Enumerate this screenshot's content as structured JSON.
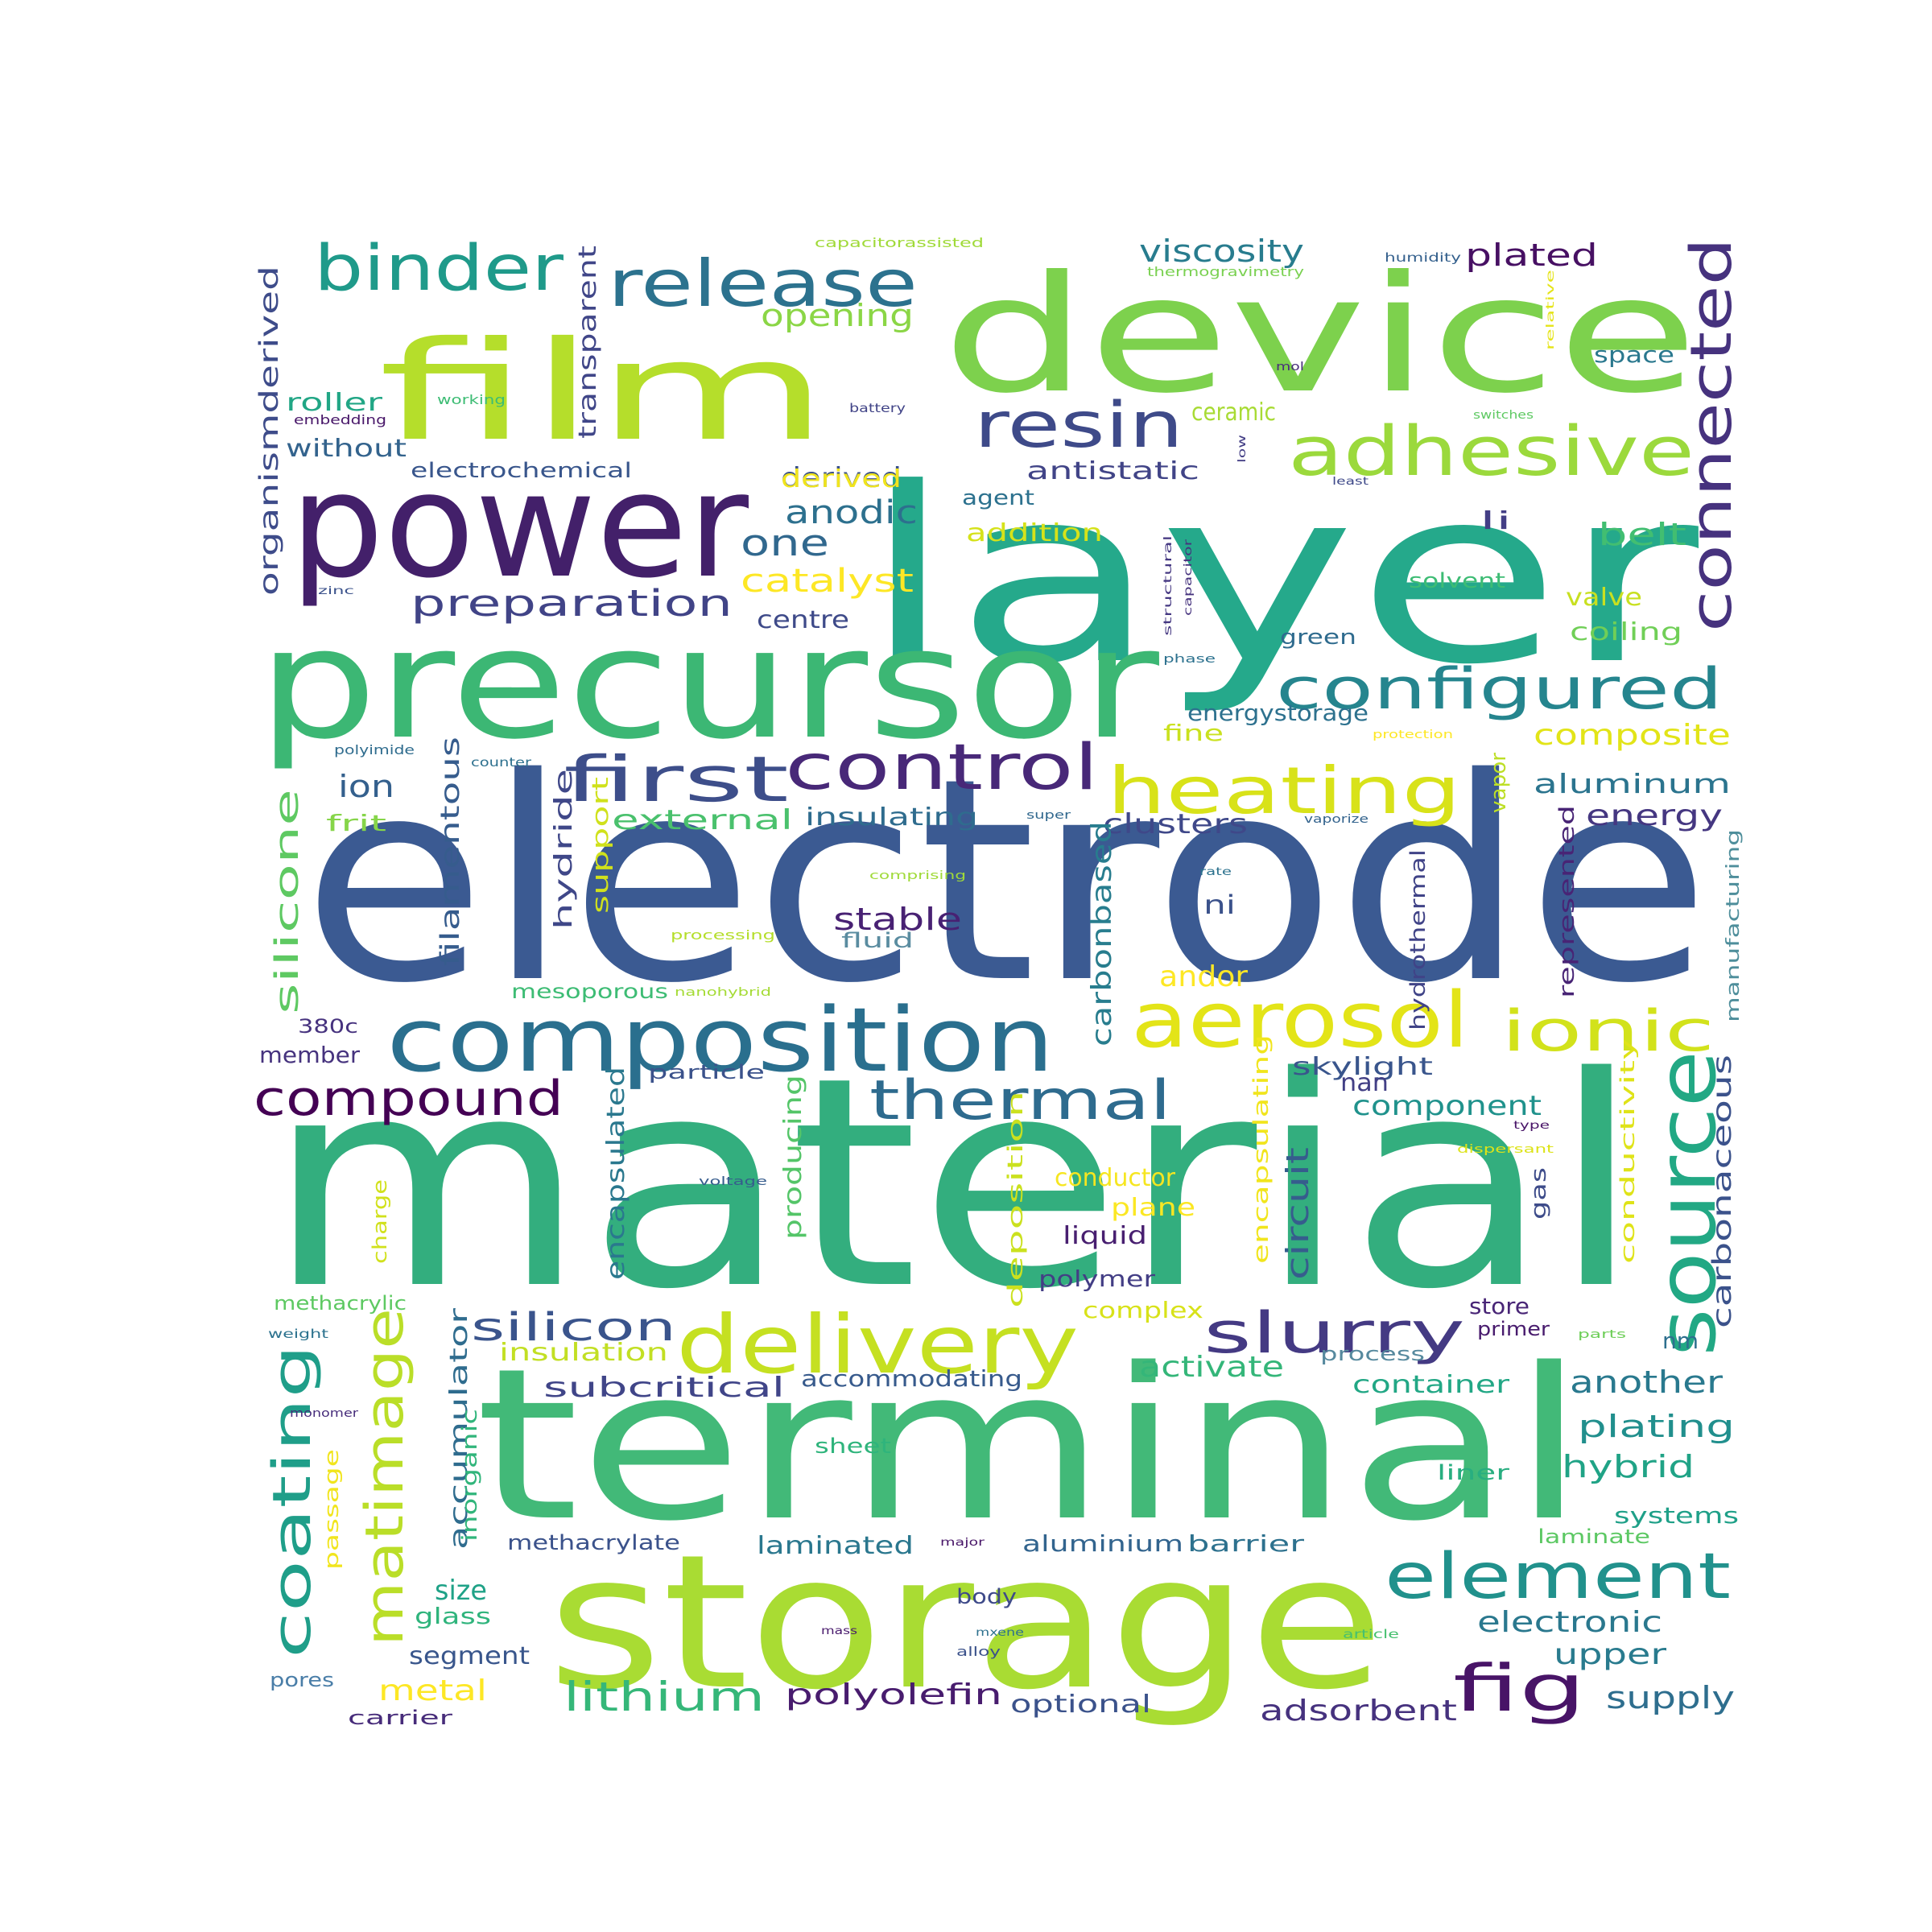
{
  "colors": {
    "background": "#ffffff"
  },
  "words": [
    {
      "text": "electrode",
      "color": "#3b5a92"
    },
    {
      "text": "material",
      "color": "#33ae7e"
    },
    {
      "text": "layer",
      "color": "#25a98b"
    },
    {
      "text": "device",
      "color": "#7dd14d"
    },
    {
      "text": "terminal",
      "color": "#42b978"
    },
    {
      "text": "storage",
      "color": "#a9dc33"
    },
    {
      "text": "film",
      "color": "#b5de2b"
    },
    {
      "text": "precursor",
      "color": "#3cb774"
    },
    {
      "text": "power",
      "color": "#43206a"
    },
    {
      "text": "composition",
      "color": "#2a6f8e"
    },
    {
      "text": "delivery",
      "color": "#c5e021"
    },
    {
      "text": "aerosol",
      "color": "#e3e418"
    },
    {
      "text": "source",
      "color": "#22a884"
    },
    {
      "text": "release",
      "color": "#2c728e"
    },
    {
      "text": "adhesive",
      "color": "#9bd93c"
    },
    {
      "text": "binder",
      "color": "#1f9a8a"
    },
    {
      "text": "resin",
      "color": "#3e4a89"
    },
    {
      "text": "connected",
      "color": "#46327e"
    },
    {
      "text": "configured",
      "color": "#25858e"
    },
    {
      "text": "heating",
      "color": "#d8e219"
    },
    {
      "text": "control",
      "color": "#482878"
    },
    {
      "text": "first",
      "color": "#3d4e8a"
    },
    {
      "text": "element",
      "color": "#21918c"
    },
    {
      "text": "compound",
      "color": "#440154"
    },
    {
      "text": "thermal",
      "color": "#2e6b8e"
    },
    {
      "text": "ionic",
      "color": "#d2e21b"
    },
    {
      "text": "slurry",
      "color": "#443a83"
    },
    {
      "text": "coating",
      "color": "#1f9e89"
    },
    {
      "text": "matimage",
      "color": "#bade28"
    },
    {
      "text": "fig",
      "color": "#481467"
    },
    {
      "text": "silicon",
      "color": "#3a548c"
    },
    {
      "text": "lithium",
      "color": "#35b779"
    },
    {
      "text": "preparation",
      "color": "#414487"
    },
    {
      "text": "silicone",
      "color": "#5ec962"
    },
    {
      "text": "one",
      "color": "#31688e"
    },
    {
      "text": "anodic",
      "color": "#2d708e"
    },
    {
      "text": "catalyst",
      "color": "#fde725"
    },
    {
      "text": "viscosity",
      "color": "#287c8e"
    },
    {
      "text": "opening",
      "color": "#8bd646"
    },
    {
      "text": "plated",
      "color": "#471063"
    },
    {
      "text": "transparent",
      "color": "#404688"
    },
    {
      "text": "derived",
      "color": "#3b528b"
    },
    {
      "text": "organismderived",
      "color": "#3e4c8a"
    },
    {
      "text": "ion",
      "color": "#34608d"
    },
    {
      "text": "filamentous",
      "color": "#365c8d"
    },
    {
      "text": "external",
      "color": "#4ac16d"
    },
    {
      "text": "insulating",
      "color": "#2f6c8e"
    },
    {
      "text": "clusters",
      "color": "#3f4889"
    },
    {
      "text": "aluminum",
      "color": "#2b748e"
    },
    {
      "text": "energy",
      "color": "#453781"
    },
    {
      "text": "composite",
      "color": "#e2e418"
    },
    {
      "text": "stable",
      "color": "#482173"
    },
    {
      "text": "andor",
      "color": "#fde725"
    },
    {
      "text": "ni",
      "color": "#3b528b"
    },
    {
      "text": "carbonbased",
      "color": "#287d8e"
    },
    {
      "text": "hydride",
      "color": "#3f4788"
    },
    {
      "text": "support",
      "color": "#d0e11c"
    },
    {
      "text": "hydrothermal",
      "color": "#404387"
    },
    {
      "text": "represented",
      "color": "#482475"
    },
    {
      "text": "manufacturing",
      "color": "#4e8e9b"
    },
    {
      "text": "vapor",
      "color": "#bddf26"
    },
    {
      "text": "roller",
      "color": "#21a685"
    },
    {
      "text": "without",
      "color": "#33638d"
    },
    {
      "text": "electrochemical",
      "color": "#39568c"
    },
    {
      "text": "ceramic",
      "color": "#a8db34"
    },
    {
      "text": "derived",
      "color": "#f1e51d"
    },
    {
      "text": "antistatic",
      "color": "#414487"
    },
    {
      "text": "agent",
      "color": "#2c718e"
    },
    {
      "text": "addition",
      "color": "#d5e21a"
    },
    {
      "text": "centre",
      "color": "#3e4a89"
    },
    {
      "text": "belt",
      "color": "#42be71"
    },
    {
      "text": "li",
      "color": "#433e85"
    },
    {
      "text": "solvent",
      "color": "#3dbc74"
    },
    {
      "text": "valve",
      "color": "#c8e020"
    },
    {
      "text": "coiling",
      "color": "#70cf57"
    },
    {
      "text": "green",
      "color": "#2f6b8e"
    },
    {
      "text": "energystorage",
      "color": "#2d718e"
    },
    {
      "text": "fine",
      "color": "#cae11f"
    },
    {
      "text": "space",
      "color": "#2a788e"
    },
    {
      "text": "frit",
      "color": "#86d549"
    },
    {
      "text": "fluid",
      "color": "#5a8ca0"
    },
    {
      "text": "mesoporous",
      "color": "#3dbc74"
    },
    {
      "text": "380c",
      "color": "#46327e"
    },
    {
      "text": "member",
      "color": "#46337e"
    },
    {
      "text": "particle",
      "color": "#3b528b"
    },
    {
      "text": "skylight",
      "color": "#39558c"
    },
    {
      "text": "nan",
      "color": "#423f85"
    },
    {
      "text": "component",
      "color": "#20928c"
    },
    {
      "text": "carbonaceous",
      "color": "#3b528b"
    },
    {
      "text": "conductivity",
      "color": "#dfe318"
    },
    {
      "text": "encapsulated",
      "color": "#2a788e"
    },
    {
      "text": "producing",
      "color": "#54c568"
    },
    {
      "text": "deposition",
      "color": "#cbe11e"
    },
    {
      "text": "circuit",
      "color": "#365d8d"
    },
    {
      "text": "encapsulating",
      "color": "#f1e51d"
    },
    {
      "text": "gas",
      "color": "#3e4c8a"
    },
    {
      "text": "conductor",
      "color": "#f6e620"
    },
    {
      "text": "plane",
      "color": "#fbe723"
    },
    {
      "text": "liquid",
      "color": "#481f70"
    },
    {
      "text": "charge",
      "color": "#d1e11c"
    },
    {
      "text": "methacrylic",
      "color": "#5ec962"
    },
    {
      "text": "polymer",
      "color": "#433e85"
    },
    {
      "text": "complex",
      "color": "#d8e219"
    },
    {
      "text": "store",
      "color": "#482576"
    },
    {
      "text": "primer",
      "color": "#481b6d"
    },
    {
      "text": "nm",
      "color": "#2d6f8e"
    },
    {
      "text": "accumulator",
      "color": "#2f6c8e"
    },
    {
      "text": "insulation",
      "color": "#c2df23"
    },
    {
      "text": "activate",
      "color": "#34b679"
    },
    {
      "text": "process",
      "color": "#56899e"
    },
    {
      "text": "container",
      "color": "#22a785"
    },
    {
      "text": "another",
      "color": "#29798e"
    },
    {
      "text": "subcritical",
      "color": "#404588"
    },
    {
      "text": "accommodating",
      "color": "#375a8c"
    },
    {
      "text": "plating",
      "color": "#218f8d"
    },
    {
      "text": "hybrid",
      "color": "#20a386"
    },
    {
      "text": "inorganic",
      "color": "#31b57b"
    },
    {
      "text": "passage",
      "color": "#f1e51d"
    },
    {
      "text": "sheet",
      "color": "#2fb47c"
    },
    {
      "text": "liner",
      "color": "#28ae80"
    },
    {
      "text": "systems",
      "color": "#1fa088"
    },
    {
      "text": "methacrylate",
      "color": "#3b528b"
    },
    {
      "text": "laminated",
      "color": "#2a778e"
    },
    {
      "text": "aluminium",
      "color": "#32648e"
    },
    {
      "text": "barrier",
      "color": "#2d718e"
    },
    {
      "text": "laminate",
      "color": "#5cc863"
    },
    {
      "text": "size",
      "color": "#1fa287"
    },
    {
      "text": "glass",
      "color": "#2fb47c"
    },
    {
      "text": "body",
      "color": "#3e4a89"
    },
    {
      "text": "electronic",
      "color": "#2a788e"
    },
    {
      "text": "segment",
      "color": "#39568c"
    },
    {
      "text": "upper",
      "color": "#297b8e"
    },
    {
      "text": "pores",
      "color": "#4a7ea8"
    },
    {
      "text": "metal",
      "color": "#fde725"
    },
    {
      "text": "polyolefin",
      "color": "#481c6e"
    },
    {
      "text": "optional",
      "color": "#3b528b"
    },
    {
      "text": "adsorbent",
      "color": "#46327e"
    },
    {
      "text": "supply",
      "color": "#2e6e8e"
    },
    {
      "text": "carrier",
      "color": "#472c7a"
    },
    {
      "text": "capacitorassisted",
      "color": "#a0da39"
    },
    {
      "text": "thermogravimetry",
      "color": "#7ad151"
    },
    {
      "text": "humidity",
      "color": "#34608d"
    },
    {
      "text": "relative",
      "color": "#e5e419"
    },
    {
      "text": "mol",
      "color": "#472d7b"
    },
    {
      "text": "battery",
      "color": "#414487"
    },
    {
      "text": "switches",
      "color": "#5ec962"
    },
    {
      "text": "low",
      "color": "#433e85"
    },
    {
      "text": "least",
      "color": "#3e4989"
    },
    {
      "text": "working",
      "color": "#3dbc74"
    },
    {
      "text": "embedding",
      "color": "#481769"
    },
    {
      "text": "structural",
      "color": "#453882"
    },
    {
      "text": "capacitor",
      "color": "#46337e"
    },
    {
      "text": "zinc",
      "color": "#3b528b"
    },
    {
      "text": "phase",
      "color": "#2c718e"
    },
    {
      "text": "polyimide",
      "color": "#2f6c8e"
    },
    {
      "text": "counter",
      "color": "#2d708e"
    },
    {
      "text": "protection",
      "color": "#fde725"
    },
    {
      "text": "super",
      "color": "#31688e"
    },
    {
      "text": "vaporize",
      "color": "#33638d"
    },
    {
      "text": "comprising",
      "color": "#a0da39"
    },
    {
      "text": "rate",
      "color": "#2c728e"
    },
    {
      "text": "processing",
      "color": "#b5de2b"
    },
    {
      "text": "nanohybrid",
      "color": "#a5db36"
    },
    {
      "text": "voltage",
      "color": "#365c8d"
    },
    {
      "text": "dispersant",
      "color": "#dde318"
    },
    {
      "text": "type",
      "color": "#481467"
    },
    {
      "text": "weight",
      "color": "#2c728e"
    },
    {
      "text": "parts",
      "color": "#6ece58"
    },
    {
      "text": "monomer",
      "color": "#472d7b"
    },
    {
      "text": "major",
      "color": "#481668"
    },
    {
      "text": "mass",
      "color": "#481a6c"
    },
    {
      "text": "mxene",
      "color": "#2d708e"
    },
    {
      "text": "alloy",
      "color": "#3b528b"
    },
    {
      "text": "article",
      "color": "#46c06f"
    }
  ]
}
